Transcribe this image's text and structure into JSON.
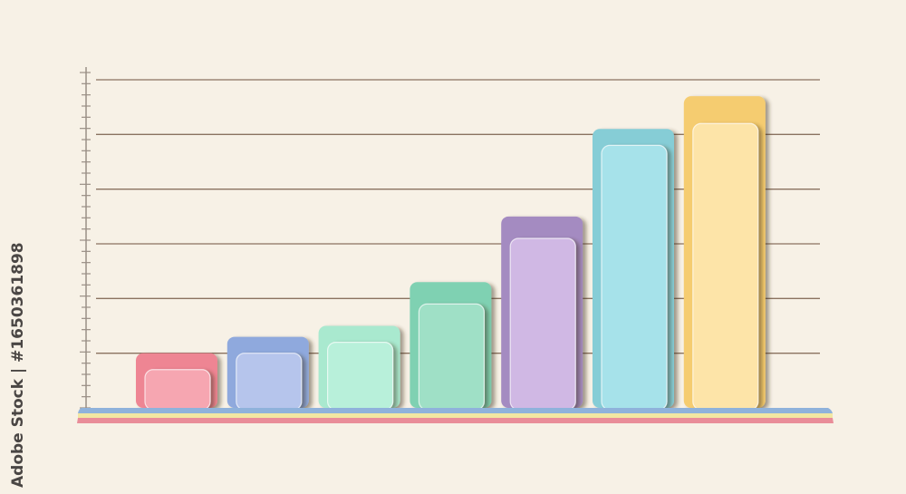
{
  "watermark": {
    "text": "Adobe Stock | #1650361898",
    "stock_id": "1650361898"
  },
  "chart_data": {
    "type": "bar",
    "title": "",
    "xlabel": "",
    "ylabel": "",
    "ylim": [
      0,
      6
    ],
    "grid": true,
    "gridlines": [
      1,
      2,
      3,
      4,
      5,
      6
    ],
    "categories": [
      "",
      "",
      "",
      "",
      "",
      "",
      ""
    ],
    "series": [
      {
        "values": [
          1.0,
          1.3,
          1.5,
          2.3,
          3.5,
          5.1,
          5.7
        ]
      },
      {
        "values": [
          0.7,
          1.0,
          1.2,
          1.9,
          3.1,
          4.8,
          5.2
        ]
      }
    ],
    "colors_outer": [
      "#ee8593",
      "#8fa9dd",
      "#a9e9cf",
      "#7fd1b2",
      "#a48bc1",
      "#86cdd6",
      "#f5cc70"
    ],
    "colors_inner": [
      "#f6a6b1",
      "#b6c5ec",
      "#b8f0da",
      "#9fe0c6",
      "#d0b8e4",
      "#a6e2ea",
      "#fde4a8"
    ],
    "baseline_colors": [
      "#8fb2db",
      "#f2e7a2",
      "#e98d99"
    ]
  }
}
